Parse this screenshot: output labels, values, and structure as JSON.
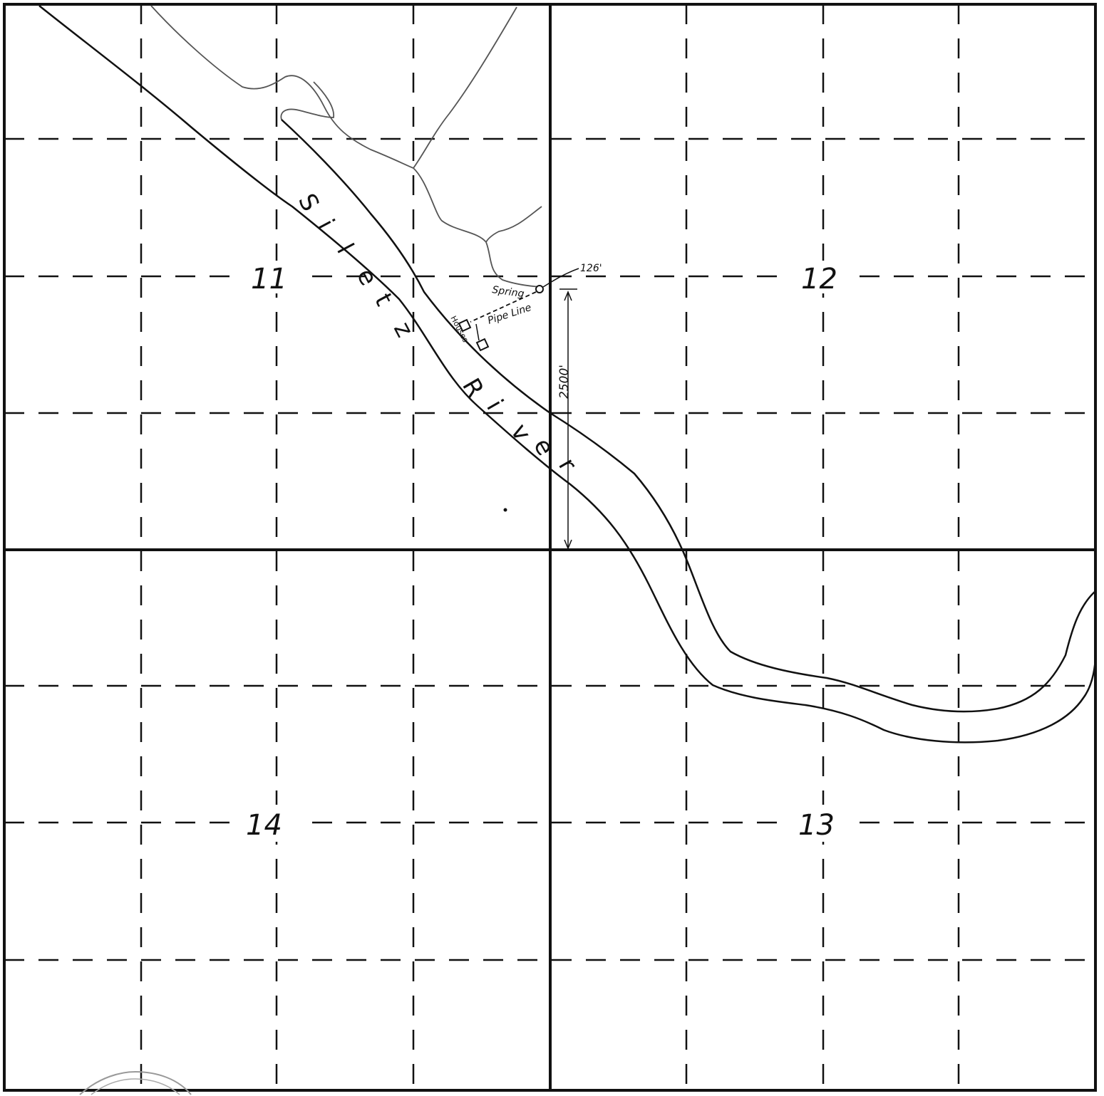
{
  "map": {
    "sections": {
      "nw": "11",
      "ne": "12",
      "sw": "14",
      "se": "13"
    },
    "river_letters": [
      "S",
      "i",
      "l",
      "e",
      "t",
      "z",
      "R",
      "i",
      "v",
      "e",
      "r"
    ],
    "annotations": {
      "spring": "Spring",
      "pipe_line": "Pipe Line",
      "houses": "Houses",
      "distance_east": "126'",
      "distance_south": "2500'"
    },
    "colors": {
      "ink": "#111111",
      "paper": "#ffffff",
      "stream": "#555555"
    }
  }
}
